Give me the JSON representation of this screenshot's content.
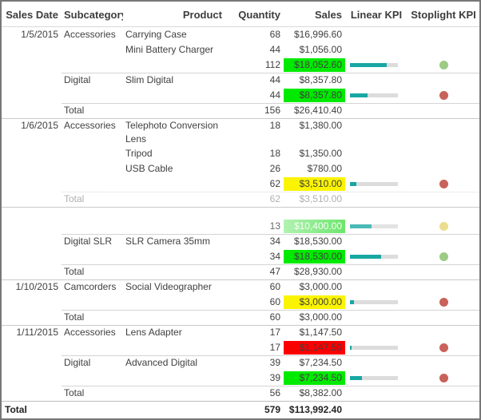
{
  "table": {
    "header": {
      "columns": [
        "Sales Date",
        "Subcategory",
        "Product",
        "Quantity",
        "Sales",
        "Linear KPI",
        "Stoplight KPI"
      ]
    },
    "colors": {
      "kpi_green": "#00ea00",
      "kpi_yellow": "#fbf400",
      "kpi_red": "#fa0000",
      "kpi_fadegreen_start": "#9cef9c",
      "kpi_fadegreen_end": "#44df44",
      "bar_fill": "#19a7a2",
      "bar_track": "#dcdcdc",
      "dot_green": "#9ccb84",
      "dot_red": "#c8625a",
      "dot_yellow": "#e5d36e"
    },
    "rows": [
      {
        "type": "detail",
        "date": "1/5/2015",
        "subcategory": "Accessories",
        "product": "Carrying Case",
        "quantity": "68",
        "sales": "$16,996.60"
      },
      {
        "type": "detail",
        "product": "Mini Battery Charger",
        "quantity": "44",
        "sales": "$1,056.00"
      },
      {
        "type": "subtotal",
        "quantity": "112",
        "sales": "$18,052.60",
        "sales_bg": "green",
        "kpi_percent": 77,
        "stoplight": "green"
      },
      {
        "type": "detail",
        "subcategory": "Digital",
        "product": "Slim Digital",
        "quantity": "44",
        "sales": "$8,357.80",
        "rule": "partial"
      },
      {
        "type": "subtotal",
        "quantity": "44",
        "sales": "$8,357.80",
        "sales_bg": "green",
        "kpi_percent": 37,
        "stoplight": "red"
      },
      {
        "type": "total",
        "subcategory": "Total",
        "quantity": "156",
        "sales": "$26,410.40",
        "rule": "partial"
      },
      {
        "type": "detail",
        "date": "1/6/2015",
        "subcategory": "Accessories",
        "product": "Telephoto Conversion Lens",
        "quantity": "18",
        "sales": "$1,380.00",
        "rule": "full",
        "tall": true
      },
      {
        "type": "detail",
        "product": "Tripod",
        "quantity": "18",
        "sales": "$1,350.00"
      },
      {
        "type": "detail",
        "product": "USB Cable",
        "quantity": "26",
        "sales": "$780.00"
      },
      {
        "type": "subtotal",
        "quantity": "62",
        "sales": "$3,510.00",
        "sales_bg": "yellow",
        "kpi_percent": 13,
        "stoplight": "red"
      },
      {
        "type": "total",
        "subcategory": "Total",
        "quantity": "62",
        "sales": "$3,510.00",
        "rule": "partial",
        "fade": "dim"
      },
      {
        "type": "gap",
        "rule": "full"
      },
      {
        "type": "subtotal",
        "quantity": "13",
        "sales": "$10,400.00",
        "sales_bg": "fadegreen",
        "kpi_percent": 45,
        "stoplight": "yellow",
        "fade": "soft"
      },
      {
        "type": "detail",
        "subcategory": "Digital SLR",
        "product": "SLR Camera 35mm",
        "quantity": "34",
        "sales": "$18,530.00",
        "rule": "partial"
      },
      {
        "type": "subtotal",
        "quantity": "34",
        "sales": "$18,530.00",
        "sales_bg": "green",
        "kpi_percent": 65,
        "stoplight": "green"
      },
      {
        "type": "total",
        "subcategory": "Total",
        "quantity": "47",
        "sales": "$28,930.00",
        "rule": "partial"
      },
      {
        "type": "detail",
        "date": "1/10/2015",
        "subcategory": "Camcorders",
        "product": "Social Videographer",
        "quantity": "60",
        "sales": "$3,000.00",
        "rule": "full"
      },
      {
        "type": "subtotal",
        "quantity": "60",
        "sales": "$3,000.00",
        "sales_bg": "yellow",
        "kpi_percent": 8,
        "stoplight": "red"
      },
      {
        "type": "total",
        "subcategory": "Total",
        "quantity": "60",
        "sales": "$3,000.00",
        "rule": "partial"
      },
      {
        "type": "detail",
        "date": "1/11/2015",
        "subcategory": "Accessories",
        "product": "Lens Adapter",
        "quantity": "17",
        "sales": "$1,147.50",
        "rule": "full"
      },
      {
        "type": "subtotal",
        "quantity": "17",
        "sales": "$1,147.50",
        "sales_bg": "red",
        "kpi_percent": 4,
        "stoplight": "red"
      },
      {
        "type": "detail",
        "subcategory": "Digital",
        "product": "Advanced Digital",
        "quantity": "39",
        "sales": "$7,234.50",
        "rule": "partial"
      },
      {
        "type": "subtotal",
        "quantity": "39",
        "sales": "$7,234.50",
        "sales_bg": "green",
        "kpi_percent": 25,
        "stoplight": "red"
      },
      {
        "type": "total",
        "subcategory": "Total",
        "quantity": "56",
        "sales": "$8,382.00",
        "rule": "partial"
      },
      {
        "type": "grand_total",
        "label": "Total",
        "quantity": "579",
        "sales": "$113,992.40",
        "rule": "full"
      }
    ]
  }
}
